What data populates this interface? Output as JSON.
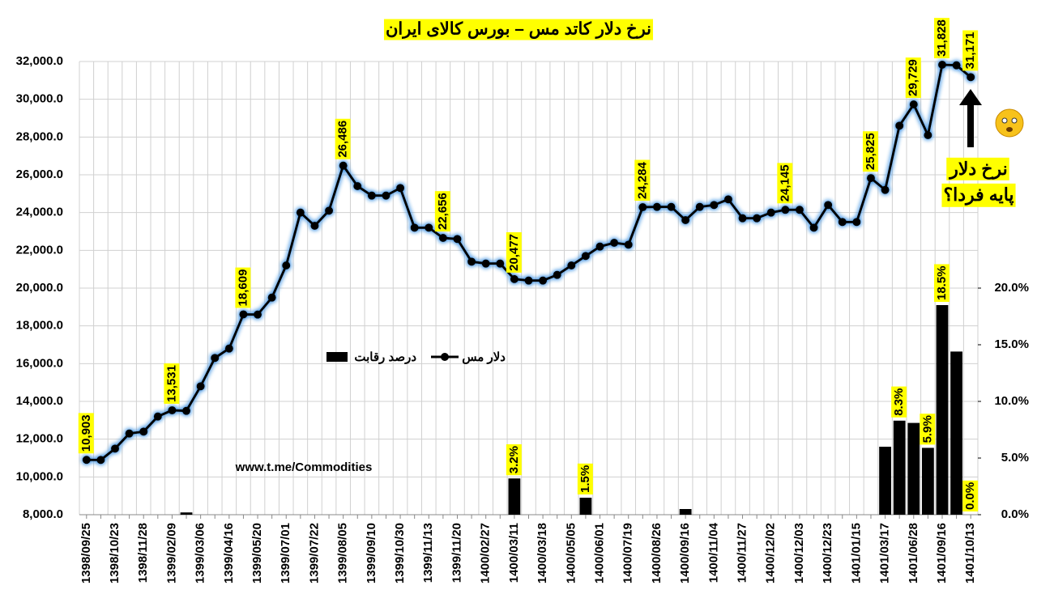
{
  "chart_data": {
    "type": "combo",
    "title": "نرخ دلار کاتد مس – بورس کالای ایران",
    "annotations": [
      "www.t.me/Commodities",
      "نرخ دلار",
      "پایه فردا؟"
    ],
    "categories": [
      "1398/09/25",
      null,
      "1398/10/23",
      null,
      "1398/11/28",
      null,
      "1399/02/09",
      null,
      "1399/03/06",
      null,
      "1399/04/16",
      null,
      "1399/05/20",
      null,
      "1399/07/01",
      null,
      "1399/07/22",
      null,
      "1399/08/05",
      null,
      "1399/09/10",
      null,
      "1399/10/30",
      null,
      "1399/11/13",
      null,
      "1399/11/20",
      null,
      "1400/02/27",
      null,
      "1400/03/11",
      null,
      "1400/03/18",
      null,
      "1400/05/05",
      null,
      "1400/06/01",
      null,
      "1400/07/19",
      null,
      "1400/08/26",
      null,
      "1400/09/16",
      null,
      "1400/11/04",
      null,
      "1400/11/27",
      null,
      "1400/12/02",
      null,
      "1400/12/03",
      null,
      "1400/12/23",
      null,
      "1401/01/15",
      null,
      "1401/03/17",
      null,
      "1401/06/28",
      null,
      "1401/09/16",
      null,
      "1401/10/13"
    ],
    "series": [
      {
        "name": "دلار مس",
        "type": "line",
        "color": "#000000",
        "values": [
          10903,
          10900,
          11500,
          12300,
          12400,
          13200,
          13531,
          13500,
          14800,
          16300,
          16800,
          18609,
          18600,
          19500,
          21200,
          24000,
          23300,
          24100,
          26486,
          25400,
          24900,
          24900,
          25300,
          23200,
          23200,
          22656,
          22600,
          21400,
          21300,
          21300,
          20477,
          20400,
          20400,
          20700,
          21200,
          21700,
          22200,
          22400,
          22300,
          24284,
          24300,
          24300,
          23600,
          24300,
          24400,
          24700,
          23700,
          23700,
          24000,
          24145,
          24145,
          23200,
          24400,
          23500,
          23500,
          25825,
          25200,
          28600,
          29729,
          28100,
          31828,
          31800,
          31171
        ],
        "value_labels": [
          "10,903",
          null,
          null,
          null,
          null,
          null,
          "13,531",
          null,
          null,
          null,
          null,
          "18,609",
          null,
          null,
          null,
          null,
          null,
          null,
          "26,486",
          null,
          null,
          null,
          null,
          null,
          null,
          "22,656",
          null,
          null,
          null,
          null,
          "20,477",
          null,
          null,
          null,
          null,
          null,
          null,
          null,
          null,
          "24,284",
          null,
          null,
          null,
          null,
          null,
          null,
          null,
          null,
          null,
          "24,145",
          null,
          null,
          null,
          null,
          null,
          "25,825",
          null,
          null,
          "29,729",
          null,
          "31,828",
          null,
          "31,171"
        ]
      },
      {
        "name": "درصد رقابت",
        "type": "bar",
        "axis": "y2",
        "color": "#000000",
        "values": [
          null,
          null,
          null,
          null,
          null,
          null,
          null,
          0.2,
          null,
          null,
          null,
          null,
          null,
          null,
          null,
          null,
          null,
          null,
          null,
          null,
          null,
          null,
          null,
          null,
          null,
          null,
          null,
          null,
          null,
          null,
          3.2,
          null,
          null,
          null,
          null,
          1.5,
          null,
          null,
          null,
          null,
          null,
          null,
          0.5,
          null,
          null,
          null,
          null,
          null,
          null,
          null,
          null,
          null,
          null,
          null,
          null,
          null,
          6.0,
          8.3,
          8.1,
          5.9,
          18.5,
          14.4,
          0.0
        ],
        "value_labels": [
          null,
          null,
          null,
          null,
          null,
          null,
          null,
          null,
          null,
          null,
          null,
          null,
          null,
          null,
          null,
          null,
          null,
          null,
          null,
          null,
          null,
          null,
          null,
          null,
          null,
          null,
          null,
          null,
          null,
          null,
          "3.2%",
          null,
          null,
          null,
          null,
          "1.5%",
          null,
          null,
          null,
          null,
          null,
          null,
          null,
          null,
          null,
          null,
          null,
          null,
          null,
          null,
          null,
          null,
          null,
          null,
          null,
          null,
          null,
          "8.3%",
          null,
          "5.9%",
          "18.5%",
          null,
          "0.0%"
        ]
      }
    ],
    "ylim": [
      8000,
      32000
    ],
    "yticks": [
      {
        "value": 8000,
        "label": "8,000.0"
      },
      {
        "value": 10000,
        "label": "10,000.0"
      },
      {
        "value": 12000,
        "label": "12,000.0"
      },
      {
        "value": 14000,
        "label": "14,000.0"
      },
      {
        "value": 16000,
        "label": "16,000.0"
      },
      {
        "value": 18000,
        "label": "18,000.0"
      },
      {
        "value": 20000,
        "label": "20,000.0"
      },
      {
        "value": 22000,
        "label": "22,000.0"
      },
      {
        "value": 24000,
        "label": "24,000.0"
      },
      {
        "value": 26000,
        "label": "26,000.0"
      },
      {
        "value": 28000,
        "label": "28,000.0"
      },
      {
        "value": 30000,
        "label": "30,000.0"
      },
      {
        "value": 32000,
        "label": "32,000.0"
      }
    ],
    "y2lim": [
      0,
      40
    ],
    "y2ticks": [
      {
        "value": 0,
        "label": "0.0%"
      },
      {
        "value": 5,
        "label": "5.0%"
      },
      {
        "value": 10,
        "label": "10.0%"
      },
      {
        "value": 15,
        "label": "15.0%"
      },
      {
        "value": 20,
        "label": "20.0%"
      }
    ],
    "grid": true
  }
}
